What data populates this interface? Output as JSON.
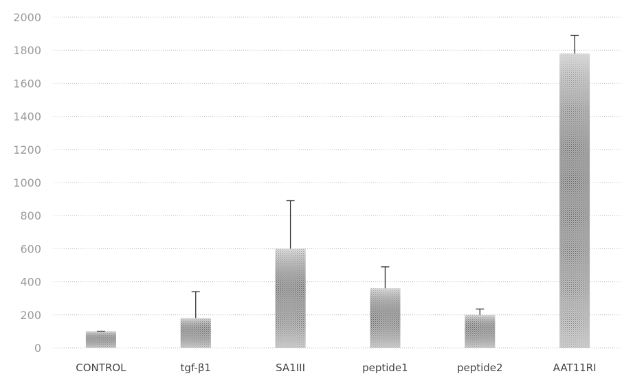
{
  "chart_data": {
    "type": "bar",
    "title": "",
    "xlabel": "",
    "ylabel": "",
    "categories": [
      "CONTROL",
      "tgf-β1",
      "SA1III",
      "peptide1",
      "peptide2",
      "AAT11RI"
    ],
    "values": [
      100,
      180,
      600,
      360,
      200,
      1780
    ],
    "error_tops": [
      100,
      340,
      890,
      490,
      235,
      1890
    ],
    "ylim": [
      0,
      2000
    ],
    "yticks": [
      0,
      200,
      400,
      600,
      800,
      1000,
      1200,
      1400,
      1600,
      1800,
      2000
    ],
    "grid": true,
    "legend": "none",
    "bar_color": "#9c9c9c",
    "grid_color": "#bdbdbd"
  }
}
